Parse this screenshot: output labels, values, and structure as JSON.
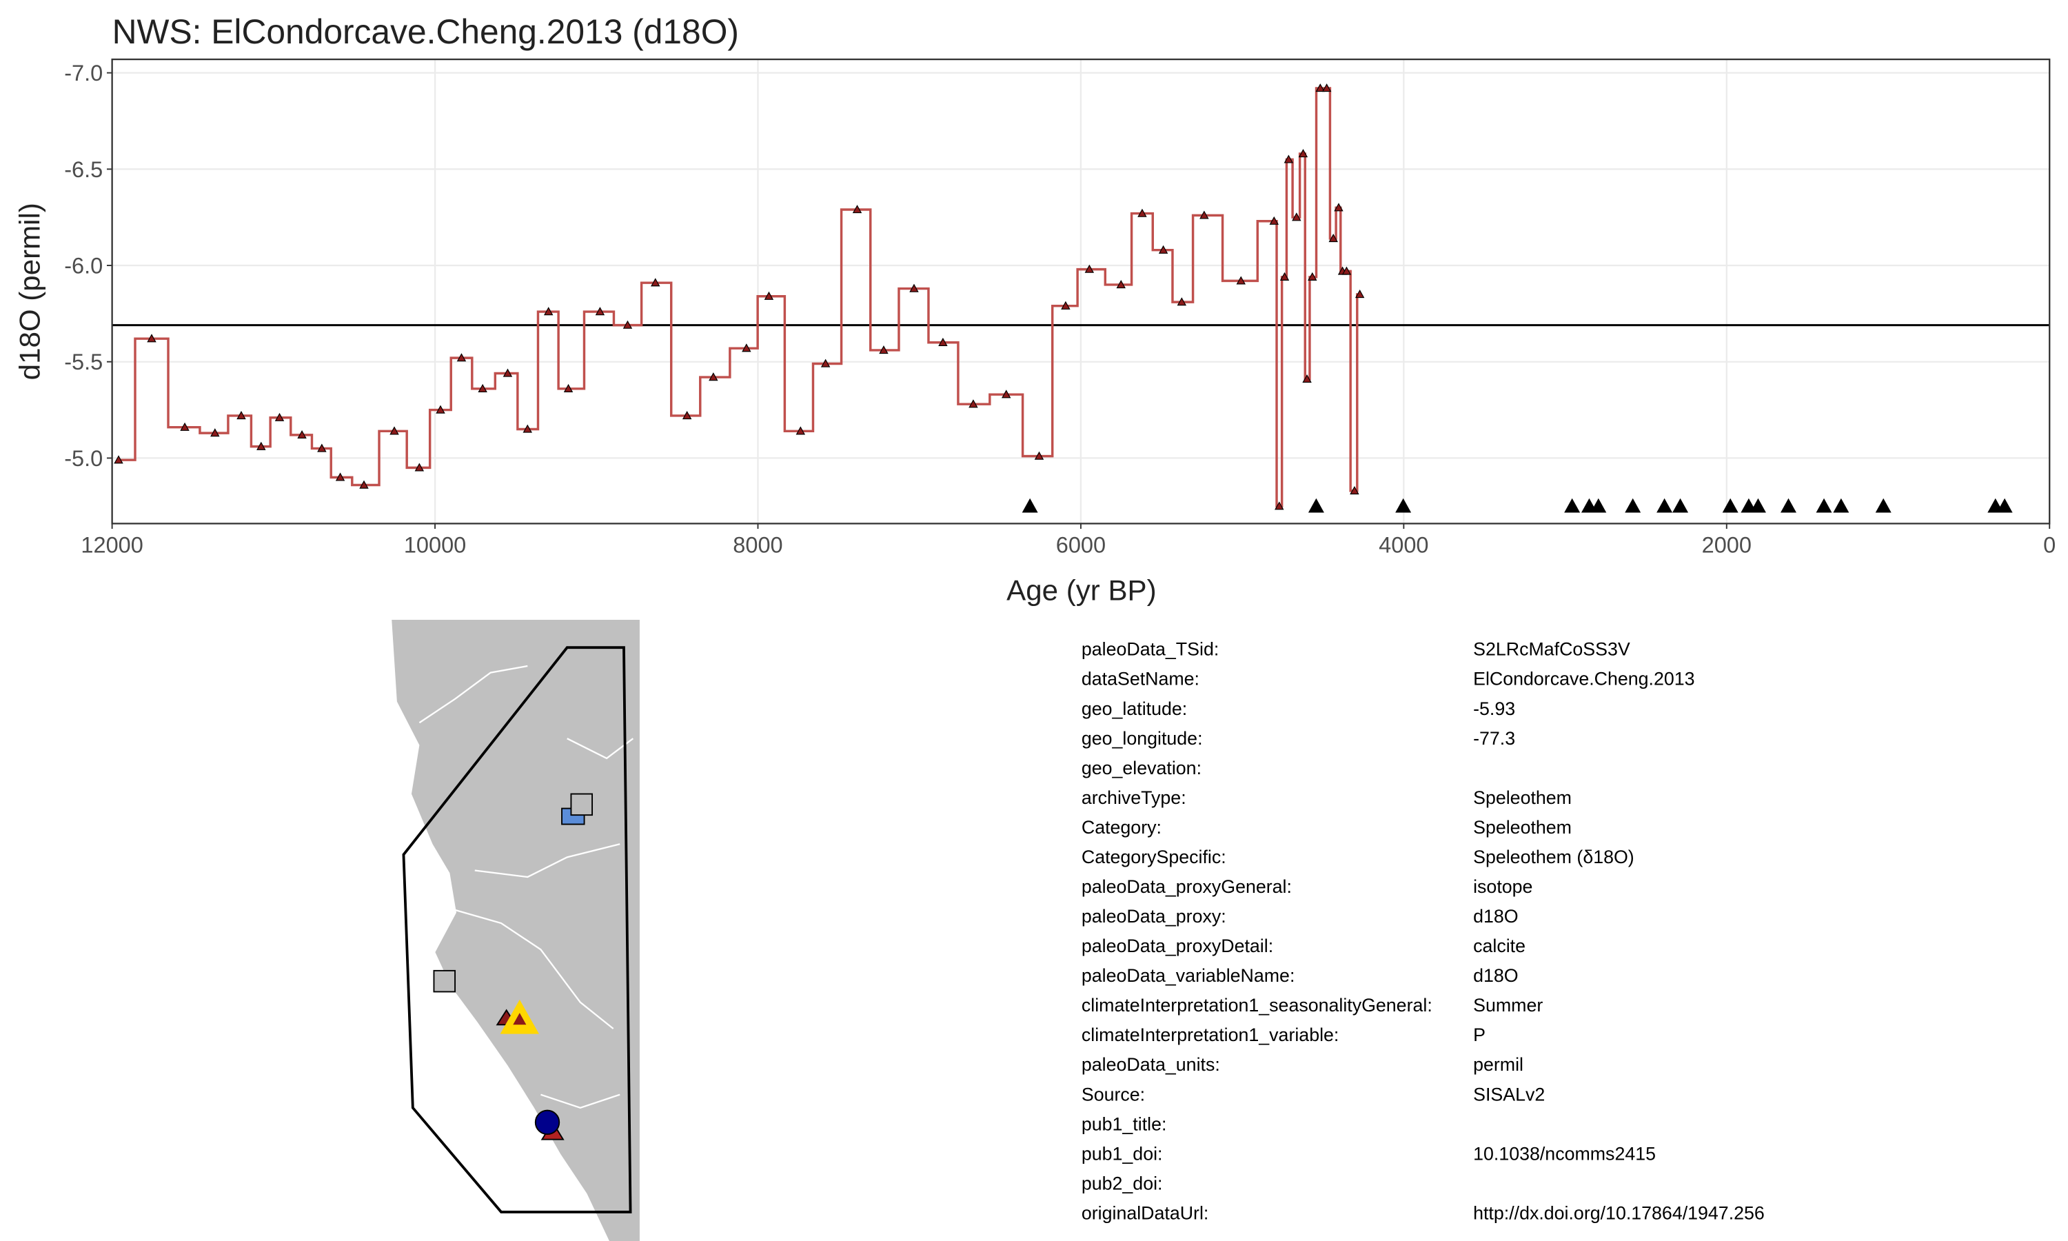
{
  "chart_data": {
    "type": "step",
    "title": "NWS: ElCondorcave.Cheng.2013 (d18O)",
    "x_label": "Age (yr BP)",
    "y_label": "d18O (permil)",
    "xlim": [
      12000,
      0
    ],
    "ylim": [
      -4.66,
      -7.07
    ],
    "xticks": [
      12000,
      10000,
      8000,
      6000,
      4000,
      2000,
      0
    ],
    "yticks": [
      {
        "value": -7,
        "label": "-7.0"
      },
      -6.5,
      {
        "value": -6,
        "label": "-6.0"
      },
      -5.5,
      {
        "value": -5,
        "label": "-5.0"
      }
    ],
    "grid": true,
    "hline": -5.69,
    "series": [
      {
        "color": "#c0504d",
        "marker_color": "#8b1a1a",
        "x": [
          11960,
          11755,
          11550,
          11363,
          11200,
          11077,
          10963,
          10824,
          10701,
          10587,
          10440,
          10252,
          10097,
          9966,
          9836,
          9705,
          9550,
          9427,
          9297,
          9174,
          8978,
          8807,
          8635,
          8439,
          8276,
          8071,
          7932,
          7736,
          7581,
          7385,
          7221,
          7033,
          6854,
          6666,
          6462,
          6258,
          6094,
          5947,
          5751,
          5620,
          5489,
          5375,
          5236,
          5008,
          4803,
          4771,
          4738,
          4713,
          4664,
          4623,
          4599,
          4566,
          4517,
          4477,
          4436,
          4403,
          4379,
          4354,
          4305,
          4272
        ],
        "values": [
          -4.99,
          -5.62,
          -5.16,
          -5.13,
          -5.22,
          -5.06,
          -5.21,
          -5.12,
          -5.05,
          -4.9,
          -4.86,
          -5.14,
          -4.95,
          -5.25,
          -5.52,
          -5.36,
          -5.44,
          -5.15,
          -5.76,
          -5.36,
          -5.76,
          -5.69,
          -5.91,
          -5.22,
          -5.42,
          -5.57,
          -5.84,
          -5.14,
          -5.49,
          -6.29,
          -5.56,
          -5.88,
          -5.6,
          -5.28,
          -5.33,
          -5.01,
          -5.79,
          -5.98,
          -5.9,
          -6.27,
          -6.08,
          -5.81,
          -6.26,
          -5.92,
          -6.23,
          -4.75,
          -5.94,
          -6.55,
          -6.25,
          -6.58,
          -5.41,
          -5.94,
          -6.92,
          -6.92,
          -6.14,
          -6.3,
          -5.97,
          -5.97,
          -4.83,
          -5.85
        ]
      }
    ],
    "markers": {
      "color": "#000000",
      "x": [
        6315,
        4542,
        4003,
        2957,
        2851,
        2794,
        2581,
        2385,
        2287,
        1977,
        1863,
        1805,
        1617,
        1397,
        1291,
        1029,
        335,
        278
      ],
      "values": [
        -4.75,
        -4.75,
        -4.75,
        -4.75,
        -4.75,
        -4.75,
        -4.75,
        -4.75,
        -4.75,
        -4.75,
        -4.75,
        -4.75,
        -4.75,
        -4.75,
        -4.75,
        -4.75,
        -4.75,
        -4.75
      ]
    }
  },
  "metadata": {
    "rows": [
      {
        "key": "paleoData_TSid:",
        "value": "S2LRcMafCoSS3V"
      },
      {
        "key": "dataSetName:",
        "value": "ElCondorcave.Cheng.2013"
      },
      {
        "key": "geo_latitude:",
        "value": "-5.93"
      },
      {
        "key": "geo_longitude:",
        "value": "-77.3"
      },
      {
        "key": "geo_elevation:"
      },
      {
        "key": "archiveType:",
        "value": "Speleothem"
      },
      {
        "key": "Category:",
        "value": "Speleothem"
      },
      {
        "key": "CategorySpecific:",
        "value": "Speleothem (δ18O)"
      },
      {
        "key": "paleoData_proxyGeneral:",
        "value": "isotope"
      },
      {
        "key": "paleoData_proxy:",
        "value": "d18O"
      },
      {
        "key": "paleoData_proxyDetail:",
        "value": "calcite"
      },
      {
        "key": "paleoData_variableName:",
        "value": "d18O"
      },
      {
        "key": "climateInterpretation1_seasonalityGeneral:",
        "value": "Summer"
      },
      {
        "key": "climateInterpretation1_variable:",
        "value": "P"
      },
      {
        "key": "paleoData_units:",
        "value": "permil"
      },
      {
        "key": "Source:",
        "value": "SISALv2"
      },
      {
        "key": "pub1_title:"
      },
      {
        "key": "pub1_doi:",
        "value": "10.1038/ncomms2415"
      },
      {
        "key": "pub2_doi:"
      },
      {
        "key": "originalDataUrl:",
        "value": "http://dx.doi.org/10.17864/1947.256"
      }
    ]
  }
}
